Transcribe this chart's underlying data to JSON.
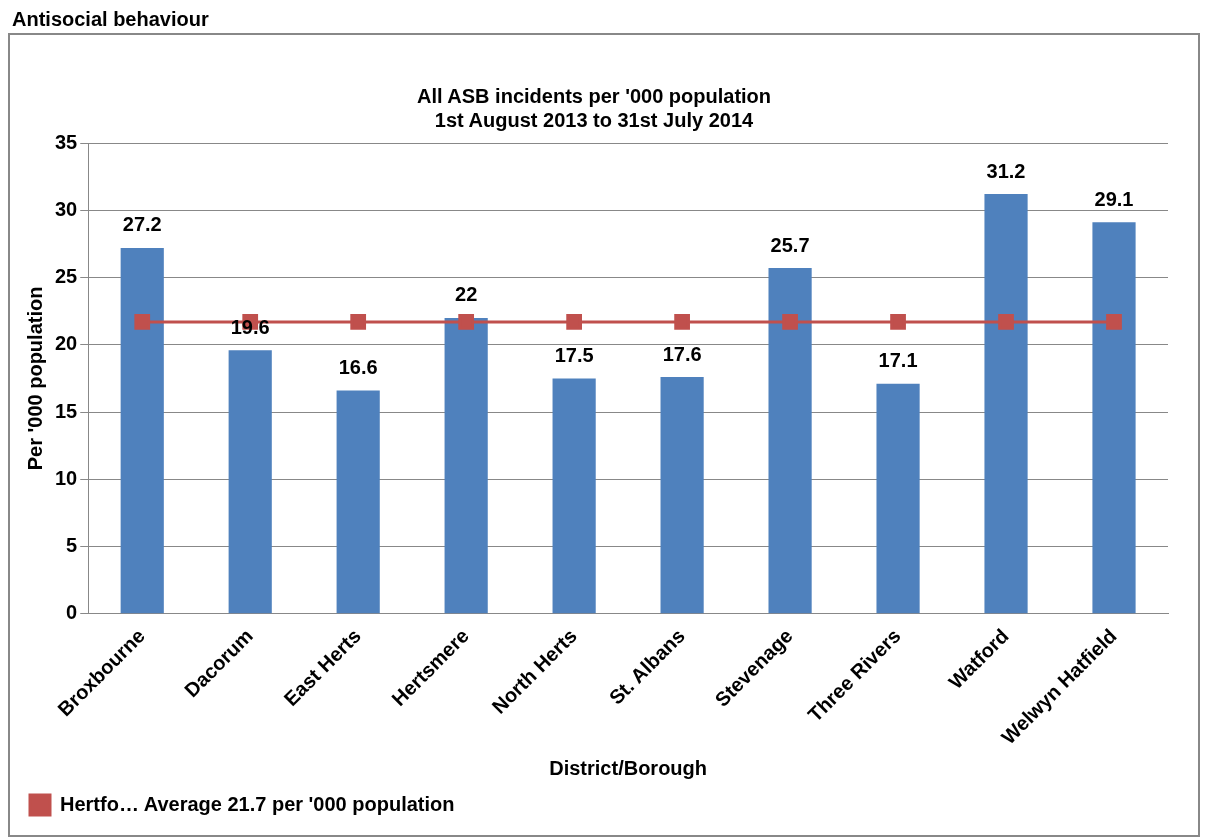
{
  "chart_data": {
    "type": "bar",
    "title": "All ASB incidents per '000 population",
    "subtitle": "1st August 2013 to 31st July 2014",
    "xlabel": "District/Borough",
    "ylabel": "Per '000 population",
    "annotations": [
      "Antisocial behaviour"
    ],
    "categories": [
      "Broxbourne",
      "Dacorum",
      "East Herts",
      "Hertsmere",
      "North Herts",
      "St. Albans",
      "Stevenage",
      "Three Rivers",
      "Watford",
      "Welwyn Hatfield"
    ],
    "series": [
      {
        "color": "#4f81bd",
        "values": [
          27.2,
          19.6,
          16.6,
          22,
          17.5,
          17.6,
          25.7,
          17.1,
          31.2,
          29.1
        ],
        "value_labels": [
          "27.2",
          "19.6",
          "16.6",
          "22",
          "17.5",
          "17.6",
          "25.7",
          "17.1",
          "31.2",
          "29.1"
        ]
      },
      {
        "type": "line",
        "name": "Hertfo… Average 21.7 per '000 population",
        "color": "#c0504d",
        "marker": "square",
        "values": [
          21.7,
          21.7,
          21.7,
          21.7,
          21.7,
          21.7,
          21.7,
          21.7,
          21.7,
          21.7
        ]
      }
    ],
    "ylim": [
      0,
      35
    ],
    "yticks": [
      0,
      5,
      10,
      15,
      20,
      25,
      30,
      35
    ],
    "grid": "y",
    "legend": "bottom left"
  }
}
